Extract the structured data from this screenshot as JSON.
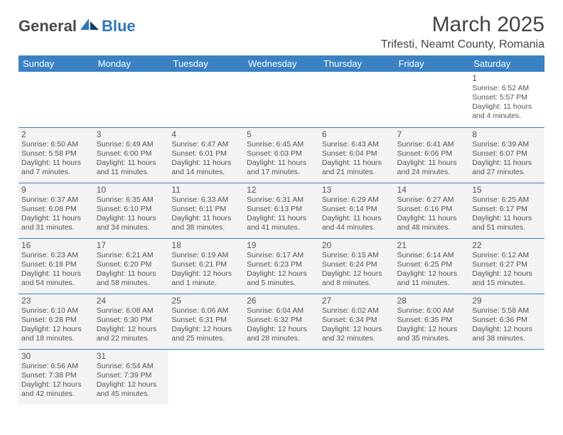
{
  "brand": {
    "part1": "General",
    "part2": "Blue"
  },
  "title": "March 2025",
  "location": "Trifesti, Neamt County, Romania",
  "colors": {
    "header_bg": "#3b82c4",
    "header_text": "#ffffff",
    "border": "#3b82c4",
    "shaded_bg": "#f3f3f3",
    "text": "#555555",
    "brand_dark": "#4a4a4a",
    "brand_blue": "#2f76bb"
  },
  "typography": {
    "title_fontsize": 30,
    "location_fontsize": 16,
    "day_header_fontsize": 13,
    "daynum_fontsize": 12,
    "detail_fontsize": 10.5
  },
  "day_headers": [
    "Sunday",
    "Monday",
    "Tuesday",
    "Wednesday",
    "Thursday",
    "Friday",
    "Saturday"
  ],
  "weeks": [
    [
      null,
      null,
      null,
      null,
      null,
      null,
      {
        "n": "1",
        "sunrise": "6:52 AM",
        "sunset": "5:57 PM",
        "daylight": "11 hours and 4 minutes."
      }
    ],
    [
      {
        "n": "2",
        "sunrise": "6:50 AM",
        "sunset": "5:58 PM",
        "daylight": "11 hours and 7 minutes."
      },
      {
        "n": "3",
        "sunrise": "6:49 AM",
        "sunset": "6:00 PM",
        "daylight": "11 hours and 11 minutes."
      },
      {
        "n": "4",
        "sunrise": "6:47 AM",
        "sunset": "6:01 PM",
        "daylight": "11 hours and 14 minutes."
      },
      {
        "n": "5",
        "sunrise": "6:45 AM",
        "sunset": "6:03 PM",
        "daylight": "11 hours and 17 minutes."
      },
      {
        "n": "6",
        "sunrise": "6:43 AM",
        "sunset": "6:04 PM",
        "daylight": "11 hours and 21 minutes."
      },
      {
        "n": "7",
        "sunrise": "6:41 AM",
        "sunset": "6:06 PM",
        "daylight": "11 hours and 24 minutes."
      },
      {
        "n": "8",
        "sunrise": "6:39 AM",
        "sunset": "6:07 PM",
        "daylight": "11 hours and 27 minutes."
      }
    ],
    [
      {
        "n": "9",
        "sunrise": "6:37 AM",
        "sunset": "6:08 PM",
        "daylight": "11 hours and 31 minutes."
      },
      {
        "n": "10",
        "sunrise": "6:35 AM",
        "sunset": "6:10 PM",
        "daylight": "11 hours and 34 minutes."
      },
      {
        "n": "11",
        "sunrise": "6:33 AM",
        "sunset": "6:11 PM",
        "daylight": "11 hours and 38 minutes."
      },
      {
        "n": "12",
        "sunrise": "6:31 AM",
        "sunset": "6:13 PM",
        "daylight": "11 hours and 41 minutes."
      },
      {
        "n": "13",
        "sunrise": "6:29 AM",
        "sunset": "6:14 PM",
        "daylight": "11 hours and 44 minutes."
      },
      {
        "n": "14",
        "sunrise": "6:27 AM",
        "sunset": "6:16 PM",
        "daylight": "11 hours and 48 minutes."
      },
      {
        "n": "15",
        "sunrise": "6:25 AM",
        "sunset": "6:17 PM",
        "daylight": "11 hours and 51 minutes."
      }
    ],
    [
      {
        "n": "16",
        "sunrise": "6:23 AM",
        "sunset": "6:18 PM",
        "daylight": "11 hours and 54 minutes."
      },
      {
        "n": "17",
        "sunrise": "6:21 AM",
        "sunset": "6:20 PM",
        "daylight": "11 hours and 58 minutes."
      },
      {
        "n": "18",
        "sunrise": "6:19 AM",
        "sunset": "6:21 PM",
        "daylight": "12 hours and 1 minute."
      },
      {
        "n": "19",
        "sunrise": "6:17 AM",
        "sunset": "6:23 PM",
        "daylight": "12 hours and 5 minutes."
      },
      {
        "n": "20",
        "sunrise": "6:15 AM",
        "sunset": "6:24 PM",
        "daylight": "12 hours and 8 minutes."
      },
      {
        "n": "21",
        "sunrise": "6:14 AM",
        "sunset": "6:25 PM",
        "daylight": "12 hours and 11 minutes."
      },
      {
        "n": "22",
        "sunrise": "6:12 AM",
        "sunset": "6:27 PM",
        "daylight": "12 hours and 15 minutes."
      }
    ],
    [
      {
        "n": "23",
        "sunrise": "6:10 AM",
        "sunset": "6:28 PM",
        "daylight": "12 hours and 18 minutes."
      },
      {
        "n": "24",
        "sunrise": "6:08 AM",
        "sunset": "6:30 PM",
        "daylight": "12 hours and 22 minutes."
      },
      {
        "n": "25",
        "sunrise": "6:06 AM",
        "sunset": "6:31 PM",
        "daylight": "12 hours and 25 minutes."
      },
      {
        "n": "26",
        "sunrise": "6:04 AM",
        "sunset": "6:32 PM",
        "daylight": "12 hours and 28 minutes."
      },
      {
        "n": "27",
        "sunrise": "6:02 AM",
        "sunset": "6:34 PM",
        "daylight": "12 hours and 32 minutes."
      },
      {
        "n": "28",
        "sunrise": "6:00 AM",
        "sunset": "6:35 PM",
        "daylight": "12 hours and 35 minutes."
      },
      {
        "n": "29",
        "sunrise": "5:58 AM",
        "sunset": "6:36 PM",
        "daylight": "12 hours and 38 minutes."
      }
    ],
    [
      {
        "n": "30",
        "sunrise": "6:56 AM",
        "sunset": "7:38 PM",
        "daylight": "12 hours and 42 minutes."
      },
      {
        "n": "31",
        "sunrise": "6:54 AM",
        "sunset": "7:39 PM",
        "daylight": "12 hours and 45 minutes."
      },
      null,
      null,
      null,
      null,
      null
    ]
  ],
  "labels": {
    "sunrise_prefix": "Sunrise: ",
    "sunset_prefix": "Sunset: ",
    "daylight_prefix": "Daylight: "
  }
}
